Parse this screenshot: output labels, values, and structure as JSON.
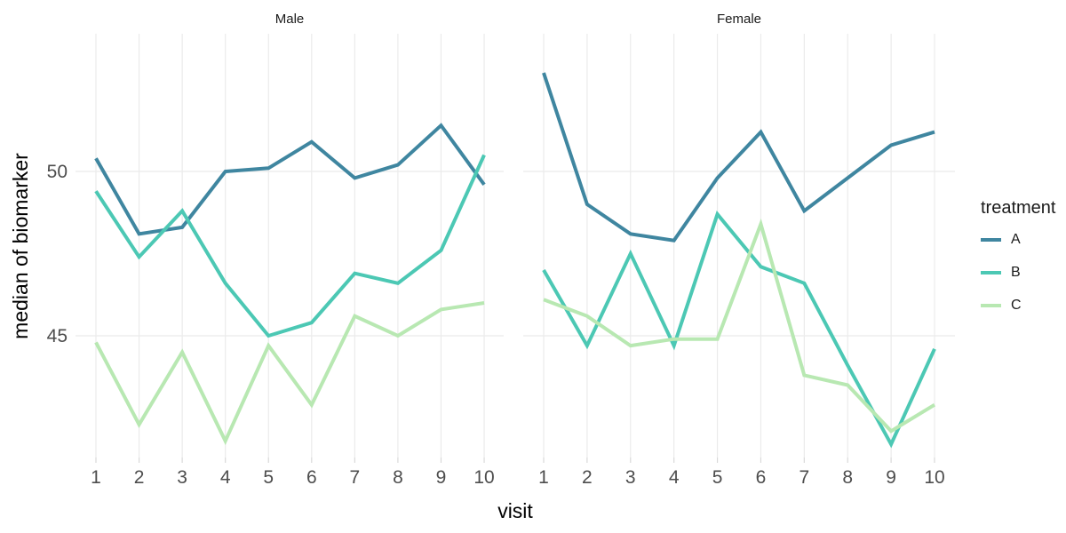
{
  "chart_data": {
    "type": "line",
    "title": "",
    "xlabel": "visit",
    "ylabel": "median of biomarker",
    "x": [
      1,
      2,
      3,
      4,
      5,
      6,
      7,
      8,
      9,
      10
    ],
    "yticks": [
      45,
      50
    ],
    "ylim": [
      41.3,
      54.2
    ],
    "grid": true,
    "legend_title": "treatment",
    "legend_position": "right",
    "facets": [
      {
        "label": "Male",
        "series": [
          {
            "name": "A",
            "color": "#3f86a0",
            "values": [
              50.4,
              48.1,
              48.3,
              50.0,
              50.1,
              50.9,
              49.8,
              50.2,
              51.4,
              49.6
            ]
          },
          {
            "name": "B",
            "color": "#4cc8b4",
            "values": [
              49.4,
              47.4,
              48.8,
              46.6,
              45.0,
              45.4,
              46.9,
              46.6,
              47.6,
              50.5
            ]
          },
          {
            "name": "C",
            "color": "#b8e8b2",
            "values": [
              44.8,
              42.3,
              44.5,
              41.8,
              44.7,
              42.9,
              45.6,
              45.0,
              45.8,
              46.0
            ]
          }
        ]
      },
      {
        "label": "Female",
        "series": [
          {
            "name": "A",
            "color": "#3f86a0",
            "values": [
              53.0,
              49.0,
              48.1,
              47.9,
              49.8,
              51.2,
              48.8,
              49.8,
              50.8,
              51.2
            ]
          },
          {
            "name": "B",
            "color": "#4cc8b4",
            "values": [
              47.0,
              44.7,
              47.5,
              44.7,
              48.7,
              47.1,
              46.6,
              44.1,
              41.7,
              44.6
            ]
          },
          {
            "name": "C",
            "color": "#b8e8b2",
            "values": [
              46.1,
              45.6,
              44.7,
              44.9,
              44.9,
              48.4,
              43.8,
              43.5,
              42.1,
              42.9
            ]
          }
        ]
      }
    ]
  },
  "legend": {
    "title": "treatment",
    "items": [
      {
        "label": "A",
        "color": "#3f86a0"
      },
      {
        "label": "B",
        "color": "#4cc8b4"
      },
      {
        "label": "C",
        "color": "#b8e8b2"
      }
    ]
  },
  "style": {
    "grid_color": "#ebebeb",
    "tick_mark_color": "#d9d9d9",
    "tick_label_color": "#4d4d4d",
    "text_color": "#1a1a1a"
  }
}
